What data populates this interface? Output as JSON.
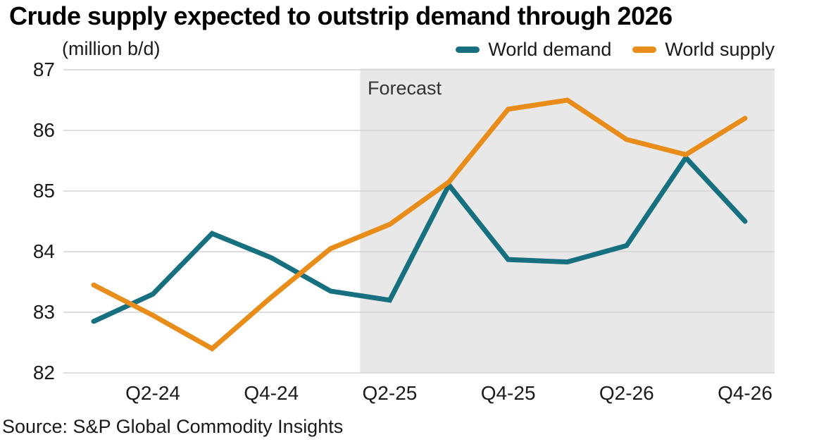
{
  "title": "Crude supply expected to outstrip demand through 2026",
  "unit_label": "(million b/d)",
  "forecast_label": "Forecast",
  "source": "Source: S&P Global Commodity Insights",
  "legend": [
    {
      "label": "World demand",
      "color": "#177080"
    },
    {
      "label": "World supply",
      "color": "#e88c1a"
    }
  ],
  "colors": {
    "demand": "#177080",
    "supply": "#e88c1a",
    "forecast_band": "#e8e8e8",
    "gridline": "#d4d4d4",
    "text": "#1a1a1a"
  },
  "chart_data": {
    "type": "line",
    "title": "Crude supply expected to outstrip demand through 2026",
    "ylabel": "(million b/d)",
    "categories": [
      "Q1-24",
      "Q2-24",
      "Q3-24",
      "Q4-24",
      "Q1-25",
      "Q2-25",
      "Q3-25",
      "Q4-25",
      "Q1-26",
      "Q2-26",
      "Q3-26",
      "Q4-26"
    ],
    "x_tick_labels": [
      "Q2-24",
      "Q4-24",
      "Q2-25",
      "Q4-25",
      "Q2-26",
      "Q4-26"
    ],
    "x_tick_indices": [
      1,
      3,
      5,
      7,
      9,
      11
    ],
    "series": [
      {
        "name": "World demand",
        "color": "#177080",
        "values": [
          82.85,
          83.3,
          84.3,
          83.9,
          83.35,
          83.2,
          85.1,
          83.87,
          83.83,
          84.1,
          85.55,
          84.5
        ]
      },
      {
        "name": "World supply",
        "color": "#e88c1a",
        "values": [
          83.45,
          82.95,
          82.4,
          83.25,
          84.05,
          84.45,
          85.15,
          86.35,
          86.5,
          85.85,
          85.6,
          86.2
        ]
      }
    ],
    "ylim": [
      82,
      87
    ],
    "y_ticks": [
      82,
      83,
      84,
      85,
      86,
      87
    ],
    "forecast_band": {
      "label": "Forecast",
      "start_between": [
        "Q1-25",
        "Q2-25"
      ],
      "end": "plot-right-edge"
    },
    "grid": true,
    "legend_position": "top-right"
  }
}
